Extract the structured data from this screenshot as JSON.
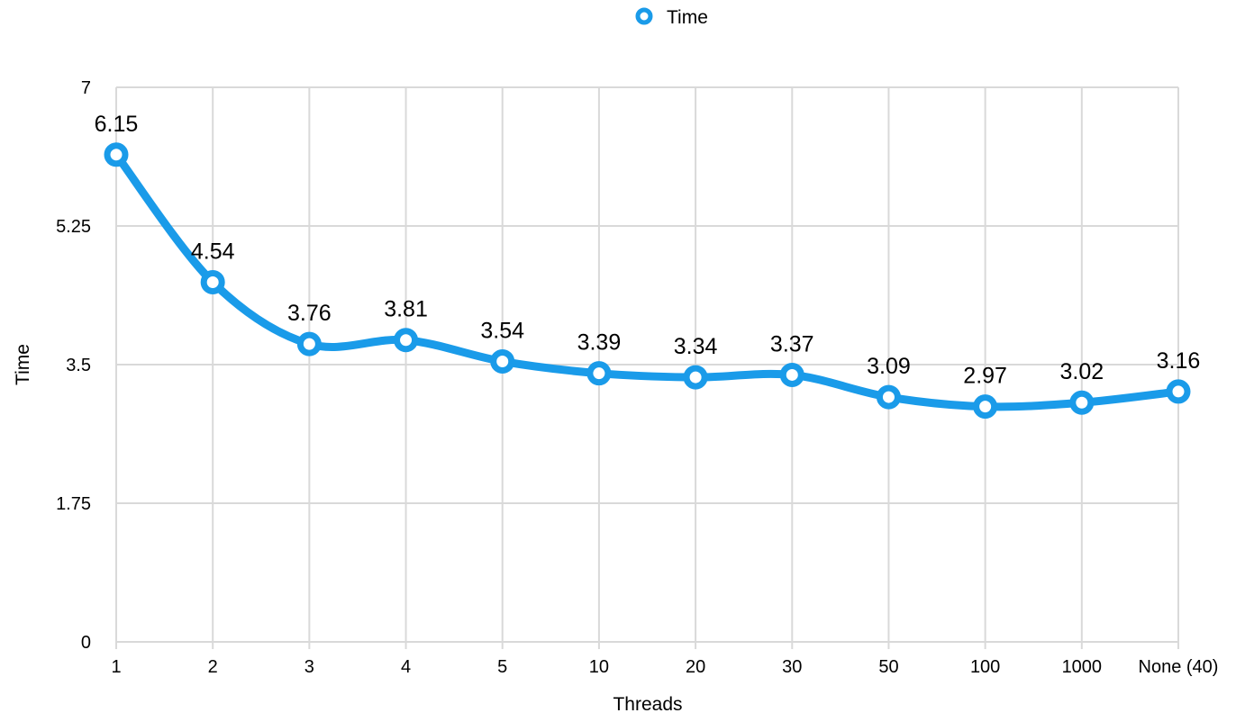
{
  "chart_data": {
    "type": "line",
    "title": "",
    "xlabel": "Threads",
    "ylabel": "Time",
    "categories": [
      "1",
      "2",
      "3",
      "4",
      "5",
      "10",
      "20",
      "30",
      "50",
      "100",
      "1000",
      "None (40)"
    ],
    "series": [
      {
        "name": "Time",
        "color": "#1a9be9",
        "values": [
          6.15,
          4.54,
          3.76,
          3.81,
          3.54,
          3.39,
          3.34,
          3.37,
          3.09,
          2.97,
          3.02,
          3.16
        ],
        "data_labels": [
          "6.15",
          "4.54",
          "3.76",
          "3.81",
          "3.54",
          "3.39",
          "3.34",
          "3.37",
          "3.09",
          "2.97",
          "3.02",
          "3.16"
        ]
      }
    ],
    "ylim": [
      0,
      7
    ],
    "yticks": [
      0,
      1.75,
      3.5,
      5.25,
      7
    ],
    "ytick_labels": [
      "0",
      "1.75",
      "3.5",
      "5.25",
      "7"
    ],
    "grid": true,
    "grid_color": "#d9d9d9",
    "smooth": true,
    "marker": "hollow-circle",
    "legend_position": "top-center"
  }
}
